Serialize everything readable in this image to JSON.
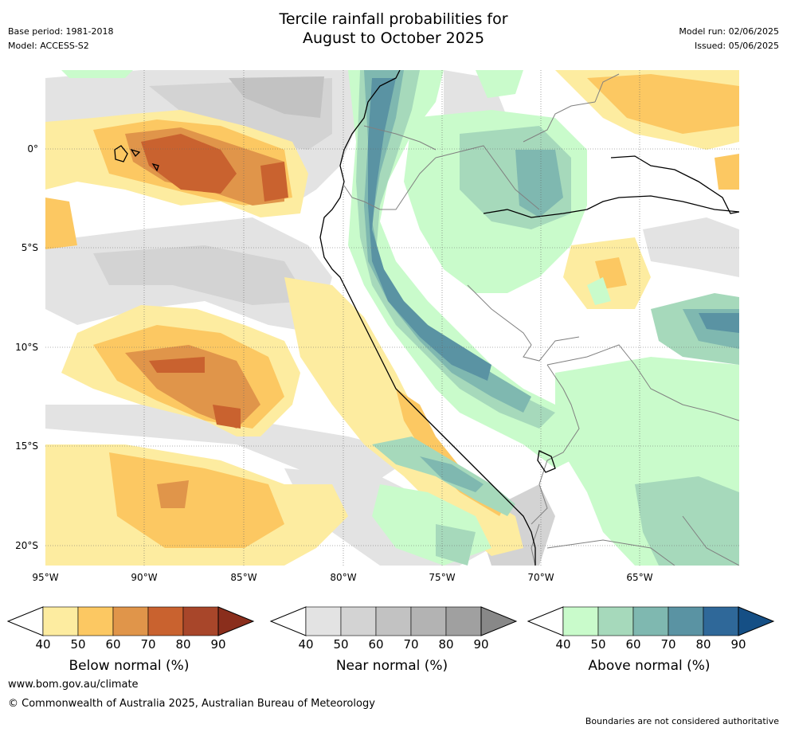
{
  "title": {
    "line1": "Tercile rainfall probabilities for",
    "line2": "August to October 2025"
  },
  "meta_left": {
    "base_period": "Base period: 1981-2018",
    "model": "Model: ACCESS-S2"
  },
  "meta_right": {
    "model_run": "Model run: 02/06/2025",
    "issued": "Issued: 05/06/2025"
  },
  "map": {
    "lat_ticks": [
      "0°",
      "5°S",
      "10°S",
      "15°S",
      "20°S"
    ],
    "lon_ticks": [
      "95°W",
      "90°W",
      "85°W",
      "80°W",
      "75°W",
      "70°W",
      "65°W"
    ]
  },
  "colorbars": [
    {
      "title": "Below normal (%)",
      "ticks": [
        "40",
        "50",
        "60",
        "70",
        "80",
        "90"
      ],
      "colors": [
        "#fdeca0",
        "#fcc862",
        "#e0954a",
        "#c9622f",
        "#a8462a",
        "#8a2e1c"
      ]
    },
    {
      "title": "Near normal (%)",
      "ticks": [
        "40",
        "50",
        "60",
        "70",
        "80",
        "90"
      ],
      "colors": [
        "#e3e3e3",
        "#d3d3d3",
        "#c2c2c2",
        "#b3b3b3",
        "#a0a0a0",
        "#888888"
      ]
    },
    {
      "title": "Above normal (%)",
      "ticks": [
        "40",
        "50",
        "60",
        "70",
        "80",
        "90"
      ],
      "colors": [
        "#c9fbcb",
        "#a6d9bb",
        "#7fb8b0",
        "#5a93a3",
        "#2f6899",
        "#154f85"
      ]
    }
  ],
  "footer": {
    "website": "www.bom.gov.au/climate",
    "copyright": "© Commonwealth of Australia 2025, Australian Bureau of Meteorology",
    "disclaimer": "Boundaries are not considered authoritative"
  }
}
